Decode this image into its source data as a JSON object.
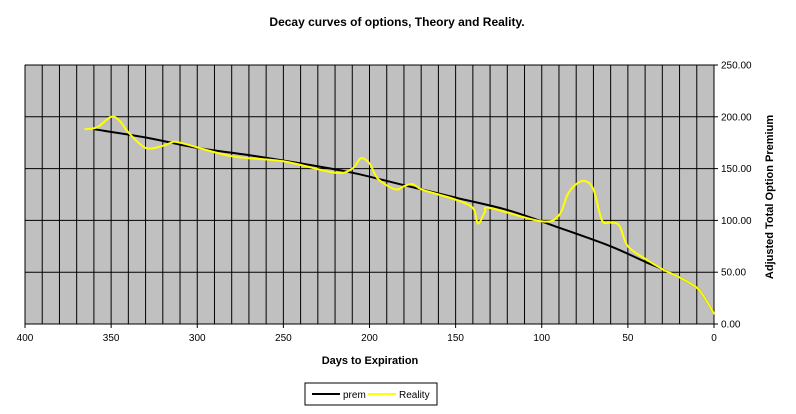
{
  "chart_data": {
    "type": "line",
    "title": "Decay curves of options, Theory and Reality.",
    "xlabel": "Days to Expiration",
    "ylabel": "Adjusted Total Option Premium",
    "xlim": [
      400,
      0
    ],
    "ylim": [
      0,
      250
    ],
    "x_ticks": [
      "400",
      "350",
      "300",
      "250",
      "200",
      "150",
      "100",
      "50",
      "0"
    ],
    "y_ticks": [
      "0.00",
      "50.00",
      "100.00",
      "150.00",
      "200.00",
      "250.00"
    ],
    "grid": true,
    "plot_background": "#c0c0c0",
    "legend_position": "bottom",
    "series": [
      {
        "name": "prem",
        "color": "#000000",
        "x": [
          360,
          330,
          300,
          270,
          240,
          210,
          180,
          150,
          120,
          90,
          60,
          40,
          30,
          20,
          10,
          5,
          0
        ],
        "y": [
          188,
          180,
          170,
          163,
          155,
          146,
          134,
          122,
          110,
          93,
          75,
          60,
          53,
          45,
          35,
          24,
          10
        ]
      },
      {
        "name": "Reality",
        "color": "#ffff00",
        "x": [
          365,
          358,
          350,
          345,
          340,
          330,
          320,
          315,
          310,
          280,
          250,
          220,
          210,
          205,
          200,
          195,
          185,
          180,
          175,
          170,
          160,
          150,
          140,
          137,
          133,
          130,
          100,
          90,
          85,
          80,
          75,
          70,
          65,
          60,
          55,
          50,
          40,
          30,
          20,
          10,
          5,
          0
        ],
        "y": [
          188,
          190,
          200,
          196,
          185,
          170,
          172,
          175,
          175,
          162,
          157,
          146,
          150,
          160,
          155,
          140,
          130,
          133,
          135,
          130,
          125,
          120,
          112,
          97,
          108,
          112,
          99,
          105,
          125,
          135,
          138,
          130,
          100,
          98,
          95,
          75,
          63,
          53,
          45,
          35,
          24,
          10
        ]
      }
    ]
  }
}
